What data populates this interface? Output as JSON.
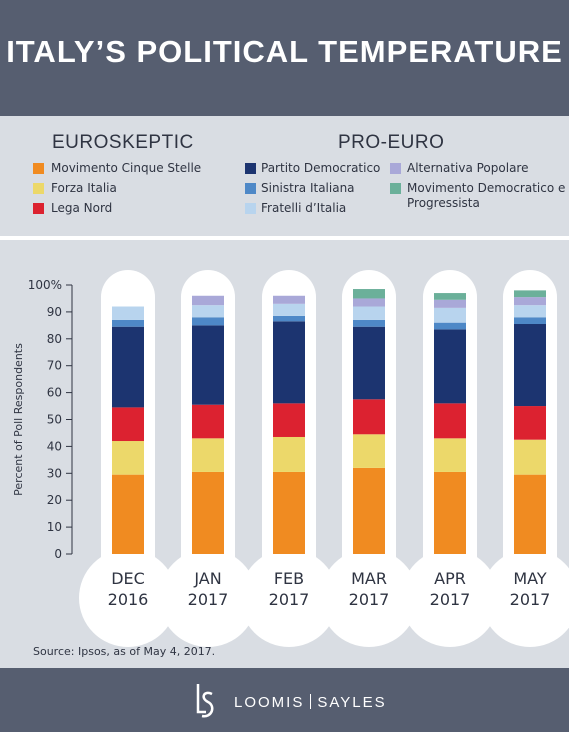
{
  "title": "ITALY’S POLITICAL TEMPERATURE",
  "legend": {
    "euroskeptic_heading": "EUROSKEPTIC",
    "proeuro_heading": "PRO-EURO",
    "euroskeptic_items": [
      {
        "label": "Movimento Cinque Stelle",
        "color": "#f08b21"
      },
      {
        "label": "Forza Italia",
        "color": "#ecd86a"
      },
      {
        "label": "Lega Nord",
        "color": "#dc2230"
      }
    ],
    "proeuro_items": [
      {
        "label": "Partito Democratico",
        "color": "#1c3470"
      },
      {
        "label": "Sinistra Italiana",
        "color": "#4e88c7"
      },
      {
        "label": "Fratelli d’Italia",
        "color": "#b8d4ee"
      }
    ],
    "proeuro_items_2": [
      {
        "label": "Alternativa Popolare",
        "color": "#a9a8d8"
      },
      {
        "label": "Movimento Democratico e",
        "label2": "Progressista",
        "color": "#6bb09a"
      }
    ]
  },
  "chart_data": {
    "type": "bar",
    "stacked": true,
    "categories": [
      [
        "DEC",
        "2016"
      ],
      [
        "JAN",
        "2017"
      ],
      [
        "FEB",
        "2017"
      ],
      [
        "MAR",
        "2017"
      ],
      [
        "APR",
        "2017"
      ],
      [
        "MAY",
        "2017"
      ]
    ],
    "ylabel": "Percent of Poll Respondents",
    "ylim": [
      0,
      100
    ],
    "yticks": [
      "0",
      "10",
      "20",
      "30",
      "40",
      "50",
      "60",
      "70",
      "80",
      "90",
      "100%"
    ],
    "series": [
      {
        "name": "Movimento Cinque Stelle",
        "color": "#f08b21",
        "values": [
          29.5,
          30.5,
          30.5,
          32,
          30.5,
          29.5
        ]
      },
      {
        "name": "Forza Italia",
        "color": "#ecd86a",
        "values": [
          12.5,
          12.5,
          13,
          12.5,
          12.5,
          13
        ]
      },
      {
        "name": "Lega Nord",
        "color": "#dc2230",
        "values": [
          12.5,
          12.5,
          12.5,
          13,
          13,
          12.5
        ]
      },
      {
        "name": "Partito Democratico",
        "color": "#1c3470",
        "values": [
          30,
          29.5,
          30.5,
          27,
          27.5,
          30.5
        ]
      },
      {
        "name": "Sinistra Italiana",
        "color": "#4e88c7",
        "values": [
          2.5,
          3,
          2,
          2.5,
          2.5,
          2.5
        ]
      },
      {
        "name": "Fratelli d’Italia",
        "color": "#b8d4ee",
        "values": [
          5,
          4.5,
          4.5,
          5,
          5.5,
          4.5
        ]
      },
      {
        "name": "Alternativa Popolare",
        "color": "#a9a8d8",
        "values": [
          0,
          3.5,
          3,
          3,
          3,
          3
        ]
      },
      {
        "name": "Movimento Democratico e Progressista",
        "color": "#6bb09a",
        "values": [
          0,
          0,
          0,
          3.5,
          2.5,
          2.5
        ]
      }
    ]
  },
  "source": "Source: Ipsos, as of May 4, 2017.",
  "footer": {
    "brand_left": "LOOMIS",
    "brand_right": "SAYLES"
  }
}
